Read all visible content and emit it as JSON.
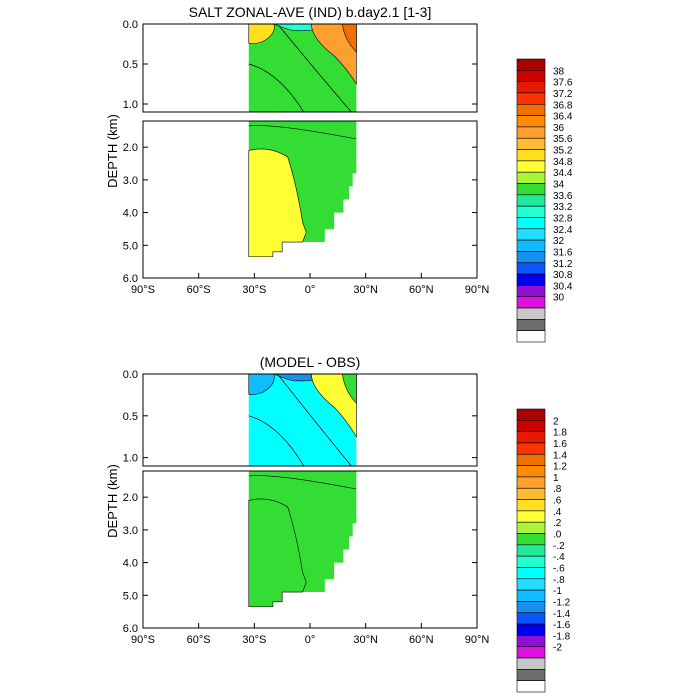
{
  "chart_data": [
    {
      "type": "heatmap",
      "title": "SALT ZONAL-AVE (IND) b.day2.1 [1-3]",
      "ylabel": "DEPTH (km)",
      "x": {
        "ticks": [
          -90,
          -60,
          -30,
          0,
          30,
          60,
          90
        ],
        "tick_labels": [
          "90°S",
          "60°S",
          "30°S",
          "0°",
          "30°N",
          "60°N",
          "90°N"
        ],
        "range": [
          -90,
          90
        ]
      },
      "y_upper": {
        "ticks": [
          0.0,
          0.5,
          1.0
        ],
        "tick_labels": [
          "0.0",
          "0.5",
          "1.0"
        ],
        "range": [
          0,
          1.1
        ]
      },
      "y_lower": {
        "ticks": [
          2.0,
          3.0,
          4.0,
          5.0,
          6.0
        ],
        "tick_labels": [
          "2.0",
          "3.0",
          "4.0",
          "5.0",
          "6.0"
        ],
        "range": [
          1.2,
          6.0
        ]
      },
      "data_extent_lat": [
        -33,
        25
      ],
      "colorbar": {
        "labels": [
          "38",
          "37.6",
          "37.2",
          "36.8",
          "36.4",
          "36",
          "35.6",
          "35.2",
          "34.8",
          "34.4",
          "34",
          "33.6",
          "33.2",
          "32.8",
          "32.4",
          "32",
          "31.6",
          "31.2",
          "30.8",
          "30.4",
          "30"
        ],
        "colors": [
          "#aa0000",
          "#cc0000",
          "#e61a00",
          "#ff3300",
          "#f27000",
          "#ff8c00",
          "#ff9f30",
          "#ffbb33",
          "#ffe020",
          "#ffff33",
          "#aaf53c",
          "#33dd33",
          "#22e89a",
          "#22ffd0",
          "#00ffff",
          "#22ddff",
          "#11bbff",
          "#1890f0",
          "#0a55ff",
          "#0000ee",
          "#9010d8",
          "#e010e0",
          "#c8c8c8",
          "#6e6e6e",
          "#ffffff"
        ]
      },
      "colors": {
        "upper_bg": "#33dd33",
        "deep_south": "#ffff33",
        "deep_north": "#33dd33",
        "surface_north": "#ff9f30",
        "surface_south": "#ffe020"
      }
    },
    {
      "type": "heatmap",
      "title": "(MODEL - OBS)",
      "ylabel": "DEPTH (km)",
      "x": {
        "ticks": [
          -90,
          -60,
          -30,
          0,
          30,
          60,
          90
        ],
        "tick_labels": [
          "90°S",
          "60°S",
          "30°S",
          "0°",
          "30°N",
          "60°N",
          "90°N"
        ],
        "range": [
          -90,
          90
        ]
      },
      "y_upper": {
        "ticks": [
          0.0,
          0.5,
          1.0
        ],
        "tick_labels": [
          "0.0",
          "0.5",
          "1.0"
        ],
        "range": [
          0,
          1.1
        ]
      },
      "y_lower": {
        "ticks": [
          2.0,
          3.0,
          4.0,
          5.0,
          6.0
        ],
        "tick_labels": [
          "2.0",
          "3.0",
          "4.0",
          "5.0",
          "6.0"
        ],
        "range": [
          1.2,
          6.0
        ]
      },
      "data_extent_lat": [
        -33,
        25
      ],
      "colorbar": {
        "labels": [
          "2",
          "1.8",
          "1.6",
          "1.4",
          "1.2",
          "1",
          ".8",
          ".6",
          ".4",
          ".2",
          ".0",
          "-.2",
          "-.4",
          "-.6",
          "-.8",
          "-1",
          "-1.2",
          "-1.4",
          "-1.6",
          "-1.8",
          "-2"
        ],
        "colors": [
          "#aa0000",
          "#cc0000",
          "#e61a00",
          "#ff3300",
          "#f27000",
          "#ff8c00",
          "#ff9f30",
          "#ffbb33",
          "#ffe020",
          "#ffff33",
          "#aaf53c",
          "#33dd33",
          "#22e89a",
          "#22ffd0",
          "#00ffff",
          "#22ddff",
          "#11bbff",
          "#1890f0",
          "#0a55ff",
          "#0000ee",
          "#9010d8",
          "#e010e0",
          "#c8c8c8",
          "#6e6e6e",
          "#ffffff"
        ]
      },
      "colors": {
        "upper_bg": "#00ffff",
        "deep_south": "#33dd33",
        "deep_north": "#33dd33",
        "surface_north": "#ffff33",
        "surface_south": "#11bbff"
      }
    }
  ]
}
